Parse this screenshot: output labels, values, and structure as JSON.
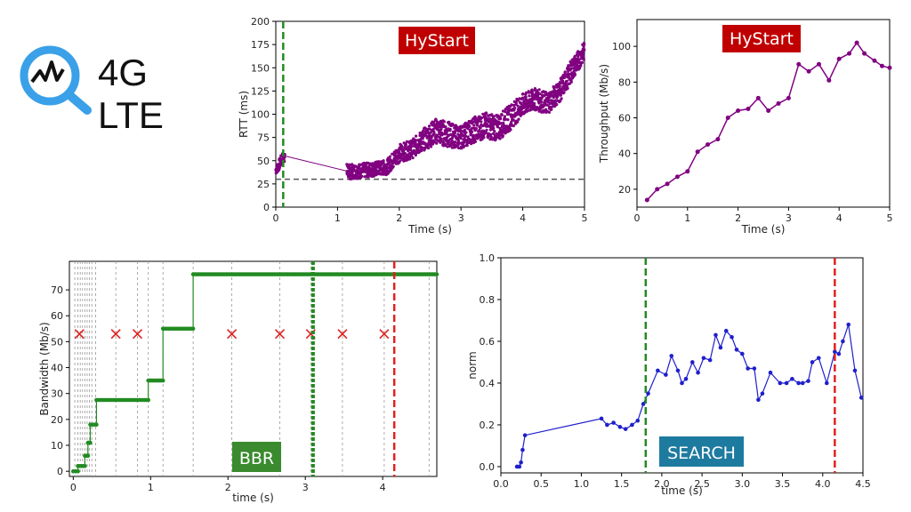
{
  "header": {
    "title": "4G LTE",
    "icon": "search-chart-icon"
  },
  "colors": {
    "purple": "#800080",
    "green": "#228B22",
    "blue": "#1f1fcc",
    "red": "#e02020",
    "hystart_box": "#c00000",
    "bbr_box": "#3a8a2e",
    "search_box": "#1e7ba0"
  },
  "chart_data": [
    {
      "id": "rtt",
      "type": "scatter",
      "label_box": "HyStart",
      "xlabel": "Time (s)",
      "ylabel": "RTT (ms)",
      "xlim": [
        0,
        5
      ],
      "ylim": [
        0,
        200
      ],
      "xticks": [
        "0",
        "1",
        "2",
        "3",
        "4",
        "5"
      ],
      "yticks": [
        "0",
        "25",
        "50",
        "75",
        "100",
        "125",
        "150",
        "175",
        "200"
      ],
      "vline_green": 0.12,
      "hline_dashed": 30,
      "trend_x": [
        0.0,
        0.05,
        0.1,
        0.15,
        1.2,
        1.5,
        1.8,
        2.0,
        2.2,
        2.4,
        2.6,
        2.8,
        3.0,
        3.2,
        3.4,
        3.6,
        3.8,
        4.0,
        4.2,
        4.4,
        4.6,
        4.8,
        5.0
      ],
      "trend_y": [
        40,
        45,
        52,
        55,
        38,
        40,
        43,
        58,
        62,
        73,
        82,
        78,
        75,
        83,
        88,
        85,
        97,
        110,
        116,
        112,
        125,
        148,
        168
      ],
      "spread": [
        5,
        6,
        6,
        6,
        8,
        8,
        8,
        10,
        10,
        12,
        14,
        14,
        12,
        14,
        14,
        14,
        14,
        12,
        12,
        12,
        12,
        12,
        10
      ]
    },
    {
      "id": "throughput",
      "type": "line",
      "label_box": "HyStart",
      "xlabel": "Time (s)",
      "ylabel": "Throughput (Mb/s)",
      "xlim": [
        0,
        5
      ],
      "ylim": [
        10,
        115
      ],
      "xticks": [
        "0",
        "1",
        "2",
        "3",
        "4",
        "5"
      ],
      "yticks": [
        "20",
        "40",
        "60",
        "80",
        "100"
      ],
      "x": [
        0.2,
        0.4,
        0.6,
        0.8,
        1.0,
        1.2,
        1.4,
        1.6,
        1.8,
        2.0,
        2.2,
        2.4,
        2.6,
        2.8,
        3.0,
        3.2,
        3.4,
        3.6,
        3.8,
        4.0,
        4.2,
        4.35,
        4.5,
        4.7,
        4.85,
        5.0
      ],
      "y": [
        14,
        20,
        23,
        27,
        30,
        41,
        45,
        48,
        60,
        64,
        65,
        71,
        64,
        68,
        71,
        90,
        86,
        90,
        81,
        93,
        96,
        102,
        96,
        92,
        89,
        88
      ]
    },
    {
      "id": "bandwidth",
      "type": "step",
      "label_box": "BBR",
      "xlabel": "time (s)",
      "ylabel": "Bandwidth (Mb/s)",
      "xlim": [
        -0.05,
        4.7
      ],
      "ylim": [
        -2,
        81
      ],
      "xticks": [
        "0",
        "1",
        "2",
        "3",
        "4"
      ],
      "yticks": [
        "0",
        "10",
        "20",
        "30",
        "40",
        "50",
        "60",
        "70"
      ],
      "steps": [
        [
          0.0,
          0
        ],
        [
          0.06,
          2
        ],
        [
          0.15,
          6
        ],
        [
          0.19,
          11
        ],
        [
          0.22,
          18
        ],
        [
          0.3,
          27.5
        ],
        [
          0.97,
          35
        ],
        [
          1.16,
          55
        ],
        [
          1.55,
          76
        ],
        [
          4.7,
          76
        ]
      ],
      "x_marks": [
        0.08,
        0.55,
        0.83,
        2.05,
        2.67,
        3.07,
        3.48,
        4.02
      ],
      "x_mark_level": 53,
      "gray_vlines": [
        0.02,
        0.06,
        0.09,
        0.12,
        0.15,
        0.18,
        0.21,
        0.24,
        0.29,
        0.55,
        0.83,
        0.97,
        1.16,
        1.55,
        2.05,
        2.67,
        3.07,
        3.48,
        4.02,
        4.6
      ],
      "vline_green": 3.1,
      "vline_red": 4.15
    },
    {
      "id": "norm",
      "type": "line",
      "label_box": "SEARCH",
      "xlabel": "time (s)",
      "ylabel": "norm",
      "xlim": [
        0,
        4.5
      ],
      "ylim": [
        -0.03,
        1.0
      ],
      "xticks": [
        "0.0",
        "0.5",
        "1.0",
        "1.5",
        "2.0",
        "2.5",
        "3.0",
        "3.5",
        "4.0",
        "4.5"
      ],
      "yticks": [
        "0.0",
        "0.2",
        "0.4",
        "0.6",
        "0.8",
        "1.0"
      ],
      "x": [
        0.2,
        0.23,
        0.25,
        0.27,
        0.3,
        1.25,
        1.32,
        1.4,
        1.48,
        1.55,
        1.63,
        1.7,
        1.77,
        1.83,
        1.95,
        2.05,
        2.12,
        2.2,
        2.25,
        2.3,
        2.38,
        2.45,
        2.52,
        2.6,
        2.67,
        2.73,
        2.8,
        2.87,
        2.93,
        3.0,
        3.07,
        3.15,
        3.2,
        3.25,
        3.35,
        3.47,
        3.55,
        3.62,
        3.7,
        3.75,
        3.82,
        3.87,
        3.95,
        4.05,
        4.15,
        4.2,
        4.25,
        4.32,
        4.4,
        4.48
      ],
      "y": [
        0.0,
        0.0,
        0.02,
        0.08,
        0.15,
        0.23,
        0.2,
        0.21,
        0.19,
        0.18,
        0.2,
        0.22,
        0.3,
        0.35,
        0.46,
        0.44,
        0.53,
        0.46,
        0.4,
        0.42,
        0.5,
        0.45,
        0.52,
        0.51,
        0.63,
        0.57,
        0.65,
        0.62,
        0.56,
        0.54,
        0.47,
        0.47,
        0.32,
        0.35,
        0.45,
        0.4,
        0.4,
        0.42,
        0.4,
        0.4,
        0.41,
        0.5,
        0.52,
        0.4,
        0.55,
        0.54,
        0.6,
        0.68,
        0.46,
        0.33
      ],
      "vline_green": 1.8,
      "vline_red": 4.15
    }
  ]
}
